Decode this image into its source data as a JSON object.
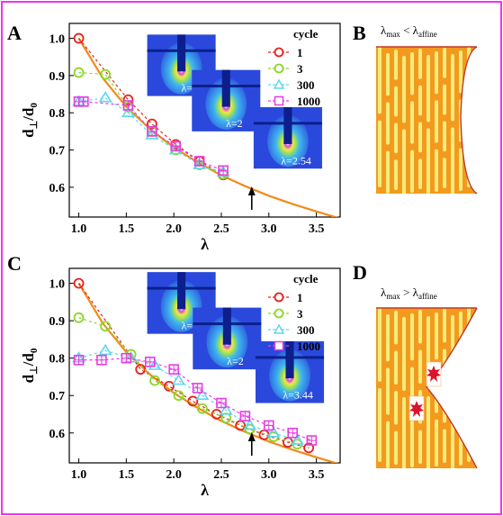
{
  "figure": {
    "border_color": "#ee33ee",
    "panels": {
      "A": "A",
      "B": "B",
      "C": "C",
      "D": "D"
    },
    "panel_B_label": {
      "lam": "λ",
      "sub1": "max",
      "rel": " < ",
      "lam2": "λ",
      "sub2": "affine"
    },
    "panel_D_label": {
      "lam": "λ",
      "sub1": "max",
      "rel": " > ",
      "lam2": "λ",
      "sub2": "affine"
    },
    "colors": {
      "fibril_dark": "#f39a1e",
      "fibril_light": "#f2ec7c",
      "outline": "#c0392b",
      "defect_red": "#d8152a"
    }
  },
  "chart_data": [
    {
      "panel": "A",
      "type": "line",
      "xlabel": "λ",
      "ylabel": "d⊥/d0",
      "ylabel_main": "d",
      "ylabel_sub": "⊥",
      "ylabel_den": "/d",
      "ylabel_den_sub": "0",
      "xlim": [
        0.9,
        3.75
      ],
      "ylim": [
        0.52,
        1.04
      ],
      "xticks": [
        "1.0",
        "1.5",
        "2.0",
        "2.5",
        "3.0",
        "3.5"
      ],
      "xtick_values": [
        1.0,
        1.5,
        2.0,
        2.5,
        3.0,
        3.5
      ],
      "yticks": [
        "0.6",
        "0.7",
        "0.8",
        "0.9",
        "1.0"
      ],
      "ytick_values": [
        0.6,
        0.7,
        0.8,
        0.9,
        1.0
      ],
      "legend_title": "cycle",
      "legend_position": "top-right",
      "arrow_x": 2.82,
      "series": [
        {
          "name": "1",
          "color": "#e8211d",
          "marker": "circle",
          "x": [
            1.0,
            1.52,
            1.77,
            2.02,
            2.27,
            2.52
          ],
          "y": [
            1.0,
            0.835,
            0.77,
            0.715,
            0.67,
            0.633
          ]
        },
        {
          "name": "3",
          "color": "#8bd62a",
          "marker": "circle",
          "x": [
            1.0,
            1.28,
            1.52,
            1.77,
            2.02,
            2.27,
            2.52
          ],
          "y": [
            0.908,
            0.903,
            0.815,
            0.75,
            0.7,
            0.66,
            0.635
          ]
        },
        {
          "name": "300",
          "color": "#5fd6ee",
          "marker": "triangle",
          "x": [
            1.0,
            1.28,
            1.52,
            1.77,
            2.02,
            2.27,
            2.52
          ],
          "y": [
            0.83,
            0.84,
            0.8,
            0.74,
            0.7,
            0.66,
            0.64
          ]
        },
        {
          "name": "1000",
          "color": "#e83ce0",
          "marker": "square",
          "x": [
            1.0,
            1.05,
            1.52,
            1.77,
            2.02,
            2.27,
            2.52
          ],
          "y": [
            0.83,
            0.83,
            0.82,
            0.75,
            0.71,
            0.67,
            0.645
          ]
        }
      ],
      "fit_color": "#f28a1b",
      "fit_curve": {
        "x": [
          1.0,
          1.25,
          1.5,
          1.75,
          2.0,
          2.25,
          2.5,
          2.75,
          3.0,
          3.25,
          3.5,
          3.75
        ],
        "y": [
          1.0,
          0.894,
          0.816,
          0.756,
          0.707,
          0.667,
          0.632,
          0.603,
          0.577,
          0.555,
          0.535,
          0.516
        ]
      },
      "insets": [
        {
          "label": "λ=1",
          "x": 1.72,
          "y": 1.01,
          "w": 0.72,
          "h": 0.165
        },
        {
          "label": "λ=2",
          "x": 2.19,
          "y": 0.915,
          "w": 0.72,
          "h": 0.165
        },
        {
          "label": "λ=2.54",
          "x": 2.84,
          "y": 0.815,
          "w": 0.72,
          "h": 0.165
        }
      ]
    },
    {
      "panel": "C",
      "type": "line",
      "xlabel": "λ",
      "ylabel": "d⊥/d0",
      "ylabel_main": "d",
      "ylabel_sub": "⊥",
      "ylabel_den": "/d",
      "ylabel_den_sub": "0",
      "xlim": [
        0.9,
        3.75
      ],
      "ylim": [
        0.52,
        1.04
      ],
      "xticks": [
        "1.0",
        "1.5",
        "2.0",
        "2.5",
        "3.0",
        "3.5"
      ],
      "xtick_values": [
        1.0,
        1.5,
        2.0,
        2.5,
        3.0,
        3.5
      ],
      "yticks": [
        "0.6",
        "0.7",
        "0.8",
        "0.9",
        "1.0"
      ],
      "ytick_values": [
        0.6,
        0.7,
        0.8,
        0.9,
        1.0
      ],
      "legend_title": "cycle",
      "legend_position": "top-right",
      "arrow_x": 2.82,
      "series": [
        {
          "name": "1",
          "color": "#e8211d",
          "marker": "circle",
          "x": [
            1.0,
            1.65,
            1.95,
            2.2,
            2.45,
            2.7,
            2.95,
            3.2,
            3.42
          ],
          "y": [
            1.0,
            0.77,
            0.725,
            0.685,
            0.65,
            0.62,
            0.595,
            0.575,
            0.56
          ]
        },
        {
          "name": "3",
          "color": "#8bd62a",
          "marker": "circle",
          "x": [
            1.0,
            1.28,
            1.55,
            1.8,
            2.05,
            2.3,
            2.55,
            2.8,
            3.05,
            3.3
          ],
          "y": [
            0.908,
            0.885,
            0.81,
            0.74,
            0.7,
            0.665,
            0.64,
            0.61,
            0.59,
            0.57
          ]
        },
        {
          "name": "300",
          "color": "#5fd6ee",
          "marker": "triangle",
          "x": [
            1.0,
            1.28,
            1.55,
            1.8,
            2.05,
            2.3,
            2.55,
            2.8,
            3.05,
            3.3
          ],
          "y": [
            0.8,
            0.82,
            0.8,
            0.78,
            0.74,
            0.7,
            0.66,
            0.62,
            0.6,
            0.58
          ]
        },
        {
          "name": "1000",
          "color": "#e83ce0",
          "marker": "square",
          "x": [
            1.0,
            1.24,
            1.5,
            1.75,
            2.0,
            2.25,
            2.5,
            2.75,
            3.0,
            3.25,
            3.45
          ],
          "y": [
            0.795,
            0.795,
            0.8,
            0.79,
            0.77,
            0.72,
            0.68,
            0.645,
            0.62,
            0.6,
            0.58
          ]
        }
      ],
      "fit_color": "#f28a1b",
      "fit_curve": {
        "x": [
          1.0,
          1.25,
          1.5,
          1.75,
          2.0,
          2.25,
          2.5,
          2.75,
          3.0,
          3.25,
          3.5,
          3.75
        ],
        "y": [
          1.0,
          0.894,
          0.816,
          0.756,
          0.707,
          0.667,
          0.632,
          0.603,
          0.577,
          0.555,
          0.535,
          0.516
        ]
      },
      "insets": [
        {
          "label": "λ=1",
          "x": 1.72,
          "y": 1.03,
          "w": 0.72,
          "h": 0.165
        },
        {
          "label": "λ=2",
          "x": 2.2,
          "y": 0.935,
          "w": 0.72,
          "h": 0.165
        },
        {
          "label": "λ=3.44",
          "x": 2.86,
          "y": 0.845,
          "w": 0.72,
          "h": 0.165
        }
      ]
    }
  ]
}
